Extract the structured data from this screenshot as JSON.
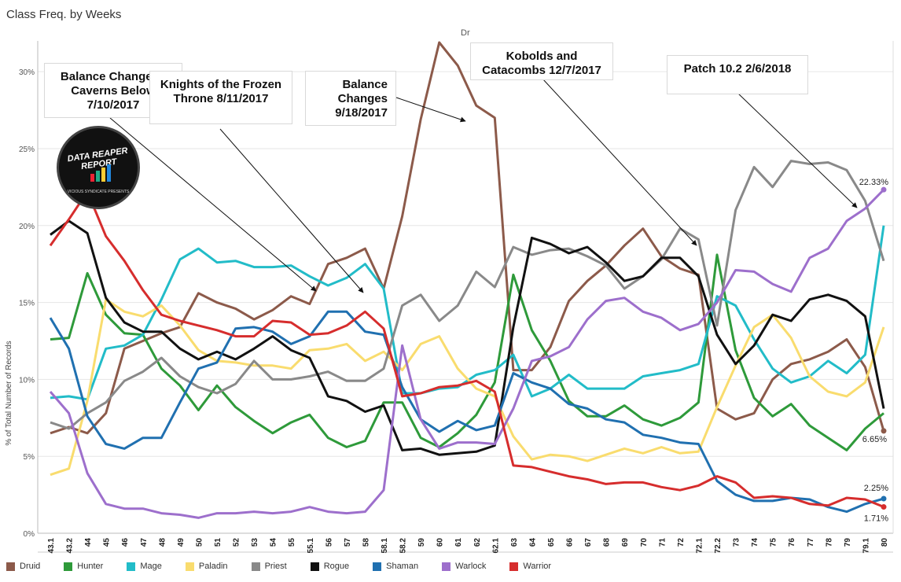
{
  "title": "Class Freq. by Weeks",
  "column_header": "Dr",
  "ylabel": "% of Total Number of Records",
  "colors": {
    "Druid": "#8c5a4a",
    "Hunter": "#2e9a3a",
    "Mage": "#22bcc8",
    "Paladin": "#f9dc6e",
    "Priest": "#898989",
    "Rogue": "#111111",
    "Shaman": "#2070b0",
    "Warlock": "#9d6fcc",
    "Warrior": "#d62d2d"
  },
  "logo": {
    "line1": "DATA REAPER REPORT",
    "line2": "VICIOUS SYNDICATE PRESENTS"
  },
  "annotations": [
    {
      "id": "a1",
      "text": "Balance Changes - Caverns Below 7/10/2017"
    },
    {
      "id": "a2",
      "text": "Knights of the Frozen Throne 8/11/2017"
    },
    {
      "id": "a3",
      "text": "Balance Changes 9/18/2017"
    },
    {
      "id": "a4",
      "text": "Kobolds and Catacombs 12/7/2017"
    },
    {
      "id": "a5",
      "text": "Patch 10.2 2/6/2018"
    }
  ],
  "chart_data": {
    "type": "line",
    "title": "Class Freq. by Weeks",
    "xlabel": "",
    "ylabel": "% of Total Number of Records",
    "ylim": [
      0,
      32
    ],
    "yticks": [
      0,
      5,
      10,
      15,
      20,
      25,
      30
    ],
    "ytick_labels": [
      "0%",
      "5%",
      "10%",
      "15%",
      "20%",
      "25%",
      "30%"
    ],
    "grid": true,
    "legend": "bottom",
    "categories": [
      "43.1",
      "43.2",
      "44",
      "45",
      "46",
      "47",
      "48",
      "49",
      "50",
      "51",
      "52",
      "53",
      "54",
      "55",
      "55.1",
      "56",
      "57",
      "58",
      "58.1",
      "58.2",
      "59",
      "60",
      "61",
      "62",
      "62.1",
      "63",
      "64",
      "65",
      "66",
      "67",
      "68",
      "69",
      "70",
      "71",
      "72",
      "72.1",
      "72.2",
      "73",
      "74",
      "75",
      "76",
      "77",
      "78",
      "79",
      "79.1",
      "80"
    ],
    "series": [
      {
        "name": "Druid",
        "values": [
          6.5,
          6.9,
          6.5,
          7.8,
          12.0,
          12.5,
          13.0,
          13.4,
          15.6,
          15.0,
          14.6,
          13.9,
          14.5,
          15.4,
          14.9,
          17.5,
          17.9,
          18.5,
          15.9,
          20.6,
          26.9,
          31.9,
          30.4,
          27.8,
          27.0,
          10.6,
          10.6,
          12.1,
          15.1,
          16.4,
          17.4,
          18.7,
          19.8,
          18.0,
          17.2,
          16.8,
          8.1,
          7.4,
          7.8,
          10.0,
          11.0,
          11.3,
          11.8,
          12.6,
          10.8,
          6.65
        ]
      },
      {
        "name": "Hunter",
        "values": [
          12.6,
          12.7,
          16.9,
          14.2,
          13.0,
          12.9,
          10.7,
          9.6,
          8.0,
          9.6,
          8.2,
          7.3,
          6.5,
          7.2,
          7.7,
          6.2,
          5.6,
          6.0,
          8.5,
          8.5,
          6.2,
          5.6,
          6.5,
          7.7,
          9.8,
          16.8,
          13.2,
          11.2,
          8.6,
          7.6,
          7.6,
          8.3,
          7.4,
          7.0,
          7.5,
          8.5,
          18.1,
          11.9,
          8.8,
          7.6,
          8.4,
          7.0,
          6.2,
          5.4,
          6.8,
          7.8
        ]
      },
      {
        "name": "Mage",
        "values": [
          8.8,
          8.9,
          8.7,
          12.0,
          12.2,
          12.9,
          15.2,
          17.8,
          18.5,
          17.6,
          17.7,
          17.3,
          17.3,
          17.4,
          16.7,
          16.1,
          16.6,
          17.5,
          15.9,
          9.1,
          9.1,
          9.4,
          9.5,
          10.3,
          10.6,
          11.6,
          8.9,
          9.4,
          10.3,
          9.4,
          9.4,
          9.4,
          10.2,
          10.4,
          10.6,
          11.0,
          15.4,
          14.8,
          12.6,
          10.7,
          9.8,
          10.2,
          11.2,
          10.4,
          11.6,
          20.0
        ]
      },
      {
        "name": "Paladin",
        "values": [
          3.8,
          4.2,
          8.6,
          15.2,
          14.4,
          14.1,
          14.8,
          13.5,
          11.9,
          11.2,
          11.1,
          10.9,
          10.9,
          10.7,
          11.9,
          12.0,
          12.3,
          11.2,
          11.8,
          10.6,
          12.3,
          12.8,
          10.7,
          9.4,
          8.9,
          6.3,
          4.8,
          5.1,
          5.0,
          4.7,
          5.1,
          5.5,
          5.2,
          5.6,
          5.2,
          5.3,
          8.2,
          10.9,
          13.4,
          14.2,
          12.7,
          10.2,
          9.2,
          8.9,
          9.8,
          13.4
        ]
      },
      {
        "name": "Priest",
        "values": [
          7.2,
          6.8,
          7.8,
          8.5,
          9.9,
          10.5,
          11.4,
          10.2,
          9.5,
          9.1,
          9.7,
          11.2,
          10.0,
          10.0,
          10.2,
          10.5,
          9.9,
          9.9,
          10.7,
          14.8,
          15.5,
          13.8,
          14.8,
          17.0,
          16.0,
          18.6,
          18.1,
          18.4,
          18.5,
          18.0,
          17.4,
          15.9,
          16.7,
          17.8,
          19.8,
          19.1,
          13.5,
          21.0,
          23.8,
          22.5,
          24.2,
          24.0,
          24.1,
          23.6,
          21.6,
          17.7
        ]
      },
      {
        "name": "Rogue",
        "values": [
          19.4,
          20.3,
          19.5,
          15.3,
          13.7,
          13.1,
          13.1,
          12.0,
          11.3,
          11.8,
          11.3,
          12.0,
          12.8,
          11.9,
          11.4,
          8.9,
          8.6,
          7.9,
          8.3,
          5.4,
          5.5,
          5.1,
          5.2,
          5.3,
          5.7,
          13.4,
          19.2,
          18.8,
          18.2,
          18.6,
          17.6,
          16.4,
          16.7,
          17.9,
          17.9,
          16.7,
          12.9,
          11.0,
          12.2,
          14.2,
          13.8,
          15.2,
          15.5,
          15.1,
          14.1,
          8.1
        ]
      },
      {
        "name": "Shaman",
        "values": [
          14.0,
          12.0,
          7.6,
          5.8,
          5.5,
          6.2,
          6.2,
          8.5,
          10.7,
          11.1,
          13.3,
          13.4,
          13.1,
          12.3,
          12.8,
          14.4,
          14.4,
          13.1,
          12.9,
          9.5,
          7.4,
          6.6,
          7.3,
          6.7,
          7.0,
          10.4,
          9.8,
          9.4,
          8.4,
          8.1,
          7.4,
          7.2,
          6.4,
          6.2,
          5.9,
          5.8,
          3.4,
          2.5,
          2.1,
          2.1,
          2.3,
          2.2,
          1.7,
          1.4,
          1.9,
          2.25
        ]
      },
      {
        "name": "Warlock",
        "values": [
          9.2,
          7.8,
          3.9,
          1.9,
          1.6,
          1.6,
          1.3,
          1.2,
          1.0,
          1.3,
          1.3,
          1.4,
          1.3,
          1.4,
          1.7,
          1.4,
          1.3,
          1.4,
          2.8,
          12.2,
          7.4,
          5.5,
          5.9,
          5.9,
          5.8,
          8.1,
          11.2,
          11.5,
          12.1,
          13.9,
          15.1,
          15.3,
          14.4,
          14.0,
          13.2,
          13.6,
          15.0,
          17.1,
          17.0,
          16.2,
          15.7,
          17.9,
          18.5,
          20.3,
          21.1,
          22.33
        ]
      },
      {
        "name": "Warrior",
        "values": [
          18.7,
          20.4,
          22.2,
          19.3,
          17.7,
          15.8,
          14.2,
          13.8,
          13.5,
          13.2,
          12.8,
          12.8,
          13.8,
          13.7,
          12.9,
          13.0,
          13.5,
          14.4,
          13.3,
          8.9,
          9.1,
          9.5,
          9.6,
          9.9,
          9.2,
          4.4,
          4.3,
          4.0,
          3.7,
          3.5,
          3.2,
          3.3,
          3.3,
          3.0,
          2.8,
          3.1,
          3.7,
          3.3,
          2.3,
          2.4,
          2.3,
          1.9,
          1.8,
          2.3,
          2.2,
          1.71
        ]
      }
    ],
    "end_labels": [
      {
        "series": "Warlock",
        "text": "22.33%"
      },
      {
        "series": "Druid",
        "text": "6.65%"
      },
      {
        "series": "Shaman",
        "text": "2.25%"
      },
      {
        "series": "Warrior",
        "text": "1.71%"
      }
    ]
  }
}
